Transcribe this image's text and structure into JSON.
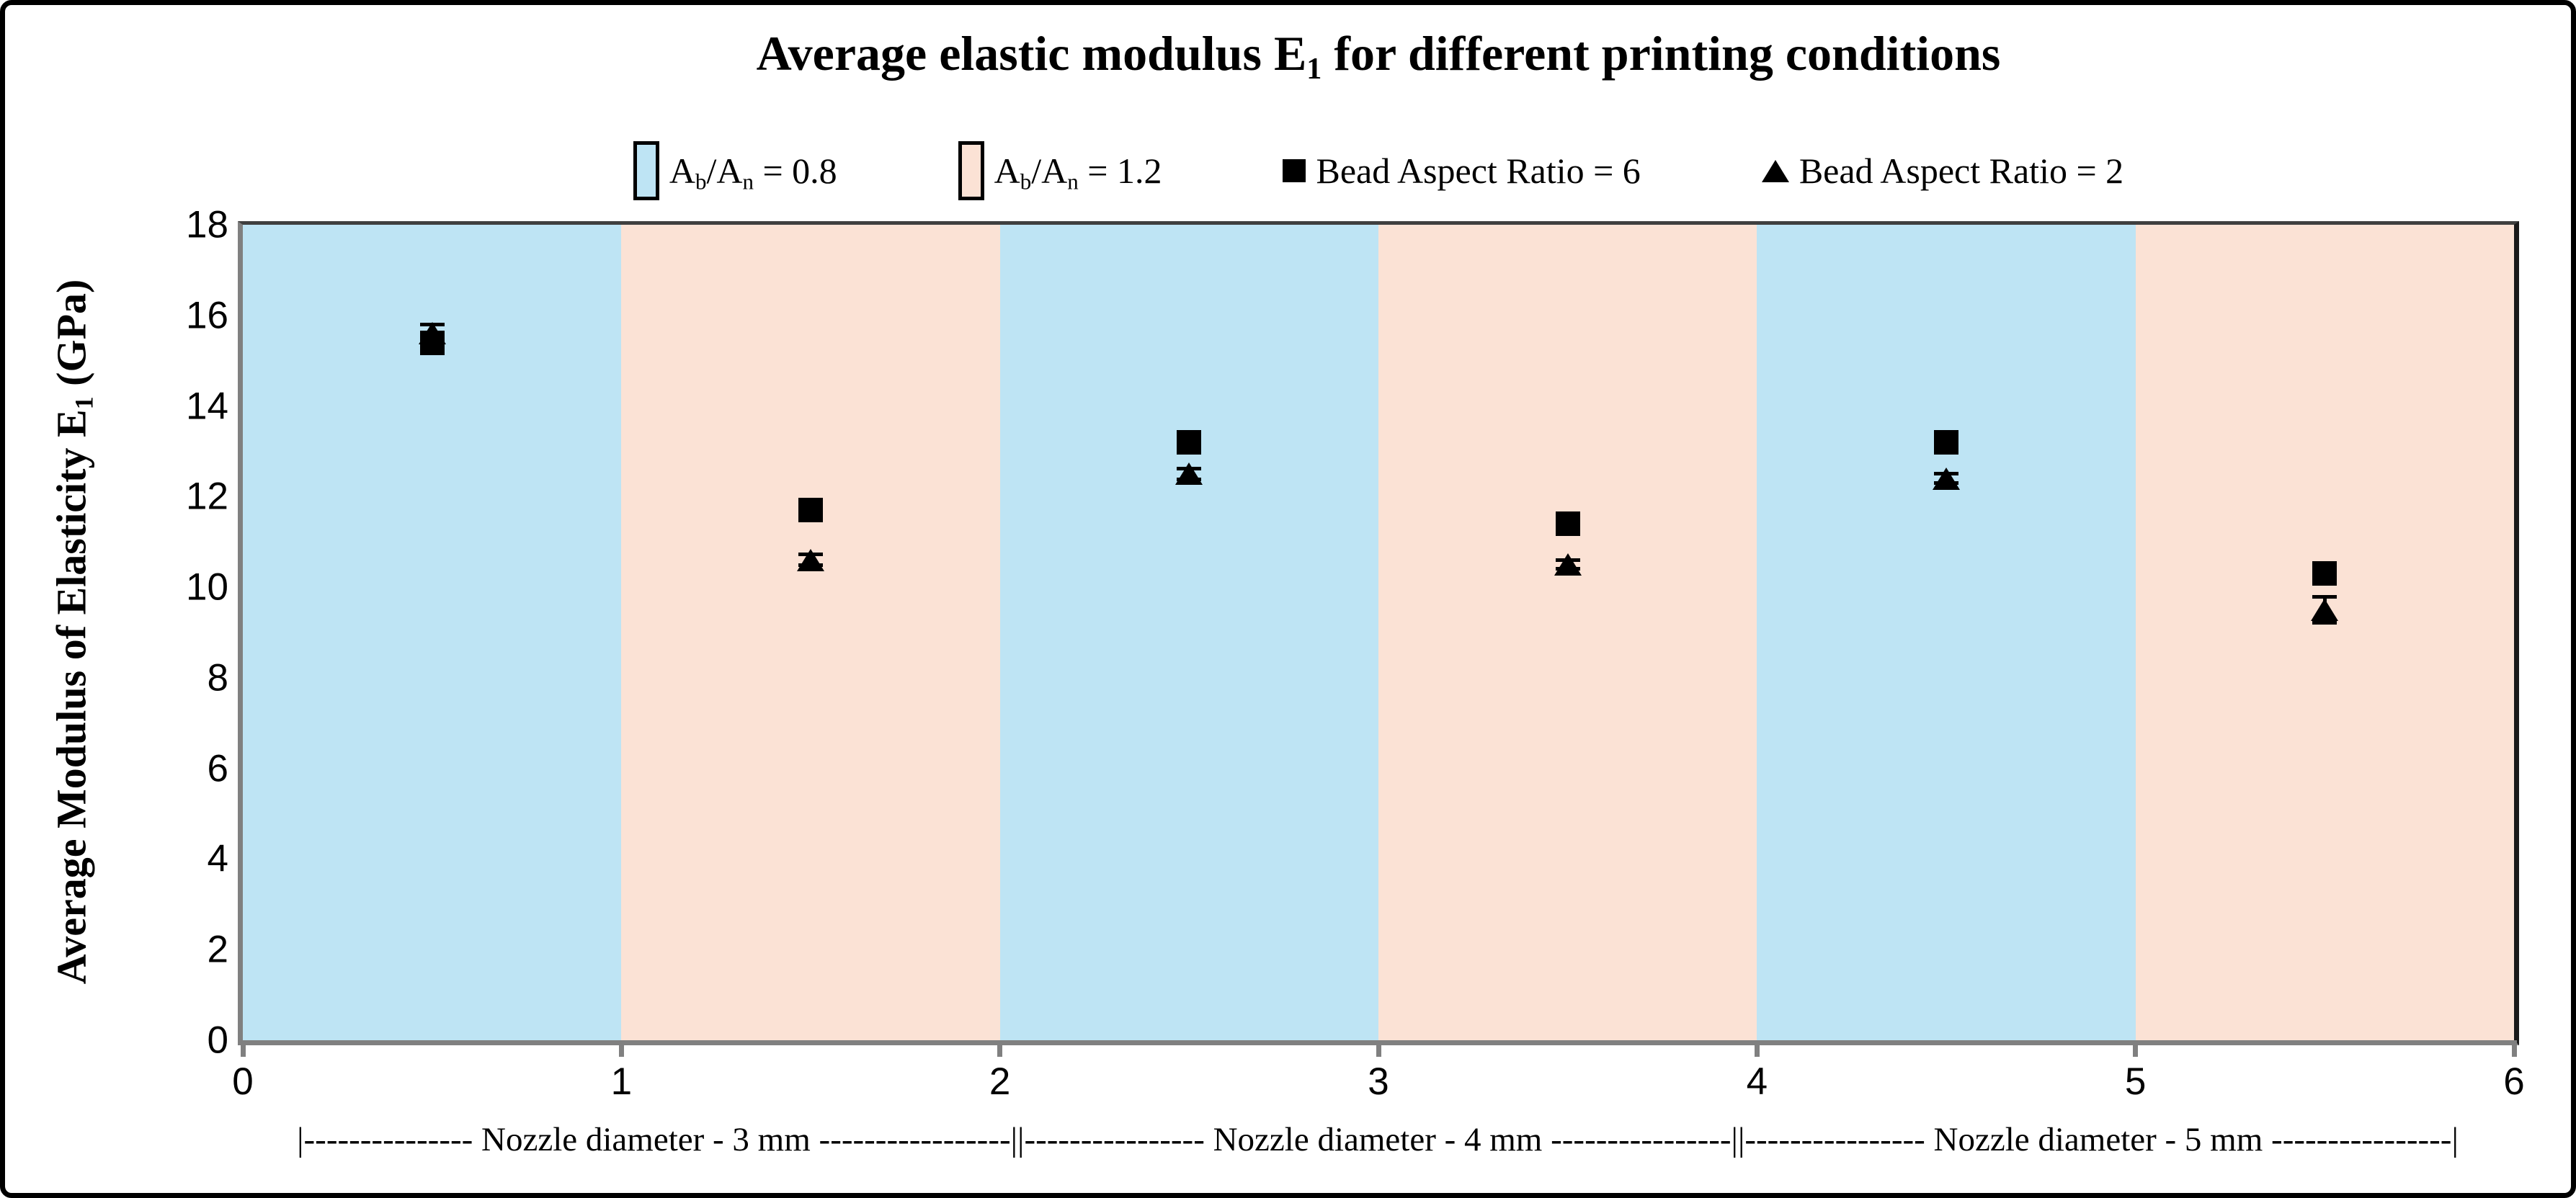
{
  "title": {
    "pre": "Average elastic modulus E",
    "sub": "1",
    "post": " for different printing conditions"
  },
  "y_axis_title": {
    "pre": "Average Modulus of Elasticity E",
    "sub": "1",
    "post": " (GPa)"
  },
  "x_annotation": "|--------------- Nozzle diameter - 3 mm -----------------||---------------- Nozzle diameter - 4 mm ----------------||---------------- Nozzle diameter - 5 mm ----------------|",
  "legend": {
    "band_items": [
      {
        "parts": [
          "A",
          "b",
          "/A",
          "n",
          " = 0.8"
        ],
        "color": "#BEE4F4",
        "key": "ab-an-0.8"
      },
      {
        "parts": [
          "A",
          "b",
          "/A",
          "n",
          " = 1.2"
        ],
        "color": "#FBE2D5",
        "key": "ab-an-1.2"
      }
    ],
    "marker_items": [
      {
        "marker": "square",
        "label": "Bead Aspect Ratio = 6"
      },
      {
        "marker": "triangle",
        "label": "Bead Aspect Ratio = 2"
      }
    ]
  },
  "chart_data": {
    "type": "scatter",
    "title": "Average elastic modulus E1 for different printing conditions",
    "xlabel": "",
    "ylabel": "Average Modulus of Elasticity E1 (GPa)",
    "xlim": [
      0,
      6
    ],
    "ylim": [
      0,
      18
    ],
    "x_ticks": [
      0,
      1,
      2,
      3,
      4,
      5,
      6
    ],
    "y_ticks": [
      0,
      2,
      4,
      6,
      8,
      10,
      12,
      14,
      16,
      18
    ],
    "grid": false,
    "legend_position": "top",
    "x": [
      0.5,
      1.5,
      2.5,
      3.5,
      4.5,
      5.5
    ],
    "series": [
      {
        "name": "Bead Aspect Ratio = 6",
        "marker": "square",
        "color": "#000000",
        "values": [
          15.4,
          11.7,
          13.2,
          11.4,
          13.2,
          10.3
        ],
        "errors": [
          0.15,
          0.15,
          0.15,
          0.15,
          0.15,
          0.15
        ]
      },
      {
        "name": "Bead Aspect Ratio = 2",
        "marker": "triangle",
        "color": "#000000",
        "values": [
          15.6,
          10.6,
          12.5,
          10.5,
          12.4,
          9.5
        ],
        "errors": [
          0.2,
          0.12,
          0.12,
          0.1,
          0.1,
          0.28
        ]
      }
    ],
    "bands": [
      {
        "x0": 0,
        "x1": 1,
        "group": "Ab/An = 0.8",
        "color": "#BEE4F4"
      },
      {
        "x0": 1,
        "x1": 2,
        "group": "Ab/An = 1.2",
        "color": "#FBE2D5"
      },
      {
        "x0": 2,
        "x1": 3,
        "group": "Ab/An = 0.8",
        "color": "#BEE4F4"
      },
      {
        "x0": 3,
        "x1": 4,
        "group": "Ab/An = 1.2",
        "color": "#FBE2D5"
      },
      {
        "x0": 4,
        "x1": 5,
        "group": "Ab/An = 0.8",
        "color": "#BEE4F4"
      },
      {
        "x0": 5,
        "x1": 6,
        "group": "Ab/An = 1.2",
        "color": "#FBE2D5"
      }
    ],
    "x_groups": [
      {
        "label": "Nozzle diameter - 3 mm",
        "x0": 0,
        "x1": 2
      },
      {
        "label": "Nozzle diameter - 4 mm",
        "x0": 2,
        "x1": 4
      },
      {
        "label": "Nozzle diameter - 5 mm",
        "x0": 4,
        "x1": 6
      }
    ]
  }
}
